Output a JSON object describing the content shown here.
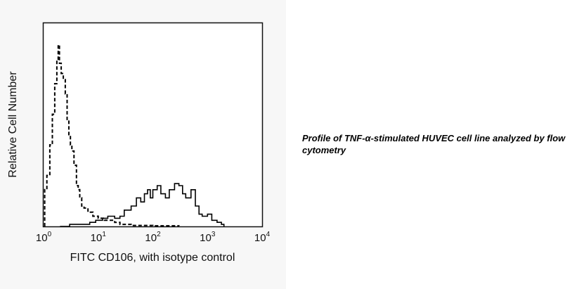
{
  "chart_data": {
    "type": "line",
    "title": "",
    "xlabel": "FITC CD106, with isotype control",
    "ylabel": "Relative Cell Number",
    "xscale": "log",
    "xlim": [
      1,
      10000
    ],
    "ylim": [
      0,
      100
    ],
    "grid": false,
    "x_ticks": [
      {
        "base": "10",
        "exp": "0"
      },
      {
        "base": "10",
        "exp": "1"
      },
      {
        "base": "10",
        "exp": "2"
      },
      {
        "base": "10",
        "exp": "3"
      },
      {
        "base": "10",
        "exp": "4"
      }
    ],
    "series": [
      {
        "name": "isotype control",
        "style": "dashed",
        "points": [
          [
            1.05,
            18
          ],
          [
            1.15,
            25
          ],
          [
            1.3,
            40
          ],
          [
            1.45,
            55
          ],
          [
            1.6,
            70
          ],
          [
            1.75,
            82
          ],
          [
            1.85,
            89
          ],
          [
            1.95,
            80
          ],
          [
            2.1,
            75
          ],
          [
            2.3,
            72
          ],
          [
            2.5,
            65
          ],
          [
            2.7,
            52
          ],
          [
            2.9,
            45
          ],
          [
            3.1,
            40
          ],
          [
            3.3,
            37
          ],
          [
            3.6,
            30
          ],
          [
            4.0,
            20
          ],
          [
            4.3,
            18
          ],
          [
            4.6,
            14
          ],
          [
            5.0,
            10
          ],
          [
            5.5,
            9
          ],
          [
            6.5,
            7
          ],
          [
            8,
            5
          ],
          [
            10,
            4
          ],
          [
            13,
            3
          ],
          [
            16,
            3
          ],
          [
            20,
            2
          ],
          [
            25,
            1
          ],
          [
            40,
            0.5
          ],
          [
            100,
            0.3
          ],
          [
            300,
            0.2
          ]
        ]
      },
      {
        "name": "CD106",
        "style": "solid",
        "points": [
          [
            2,
            0
          ],
          [
            3,
            1
          ],
          [
            5,
            1
          ],
          [
            7,
            2
          ],
          [
            9,
            3
          ],
          [
            12,
            4
          ],
          [
            15,
            5
          ],
          [
            20,
            4
          ],
          [
            25,
            5
          ],
          [
            30,
            8
          ],
          [
            40,
            10
          ],
          [
            50,
            14
          ],
          [
            60,
            12
          ],
          [
            70,
            16
          ],
          [
            80,
            18
          ],
          [
            90,
            14
          ],
          [
            100,
            18
          ],
          [
            120,
            20
          ],
          [
            140,
            16
          ],
          [
            170,
            14
          ],
          [
            200,
            18
          ],
          [
            250,
            21
          ],
          [
            300,
            20
          ],
          [
            350,
            16
          ],
          [
            400,
            14
          ],
          [
            500,
            18
          ],
          [
            600,
            10
          ],
          [
            700,
            6
          ],
          [
            800,
            5
          ],
          [
            1000,
            6
          ],
          [
            1200,
            3
          ],
          [
            1500,
            2
          ],
          [
            1800,
            1
          ],
          [
            2000,
            0
          ]
        ]
      }
    ]
  },
  "caption": "Profile of TNF-α-stimulated HUVEC cell line analyzed by flow cytometry"
}
